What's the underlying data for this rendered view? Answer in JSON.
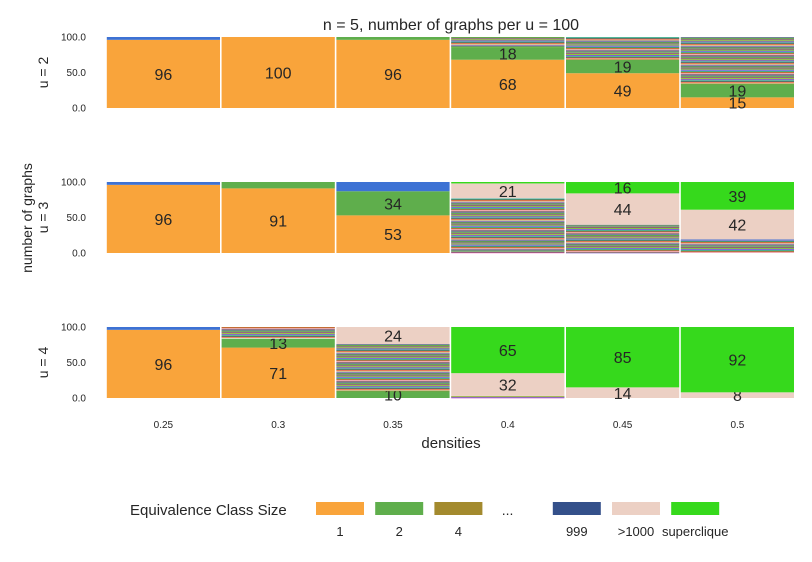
{
  "chart_data": {
    "type": "bar",
    "title": "n = 5, number of graphs per u = 100",
    "xlabel": "densities",
    "ylabel": "number of graphs",
    "categories": [
      "0.25",
      "0.3",
      "0.35",
      "0.4",
      "0.45",
      "0.5"
    ],
    "ylim": [
      0,
      100
    ],
    "yticks": [
      "100.0",
      "50.0",
      "0.0"
    ],
    "rows": [
      {
        "label": "u = 2",
        "stacks": [
          [
            {
              "v": 96,
              "c": "#f9a43b",
              "label": "96"
            },
            {
              "v": 4,
              "c": "#3d72d4"
            }
          ],
          [
            {
              "v": 100,
              "c": "#f9a43b",
              "label": "100"
            }
          ],
          [
            {
              "v": 96,
              "c": "#f9a43b",
              "label": "96"
            },
            {
              "v": 4,
              "c": "#5fae4c"
            }
          ],
          [
            {
              "v": 68,
              "c": "#f9a43b",
              "label": "68"
            },
            {
              "v": 18,
              "c": "#5fae4c",
              "label": "18"
            },
            {
              "v": 14,
              "c": "multi"
            }
          ],
          [
            {
              "v": 49,
              "c": "#f9a43b",
              "label": "49"
            },
            {
              "v": 19,
              "c": "#5fae4c",
              "label": "19"
            },
            {
              "v": 32,
              "c": "multi"
            }
          ],
          [
            {
              "v": 15,
              "c": "#f9a43b",
              "label": "15"
            },
            {
              "v": 19,
              "c": "#5fae4c",
              "label": "19"
            },
            {
              "v": 66,
              "c": "multi"
            }
          ]
        ]
      },
      {
        "label": "u = 3",
        "stacks": [
          [
            {
              "v": 96,
              "c": "#f9a43b",
              "label": "96"
            },
            {
              "v": 4,
              "c": "#3d72d4"
            }
          ],
          [
            {
              "v": 91,
              "c": "#f9a43b",
              "label": "91"
            },
            {
              "v": 9,
              "c": "#5fae4c"
            }
          ],
          [
            {
              "v": 53,
              "c": "#f9a43b",
              "label": "53"
            },
            {
              "v": 34,
              "c": "#5fae4c",
              "label": "34"
            },
            {
              "v": 13,
              "c": "#3d72d4"
            }
          ],
          [
            {
              "v": 77,
              "c": "multi"
            },
            {
              "v": 21,
              "c": "#ecd0c4",
              "label": "21"
            },
            {
              "v": 2,
              "c": "#36d91c"
            }
          ],
          [
            {
              "v": 40,
              "c": "multi"
            },
            {
              "v": 44,
              "c": "#ecd0c4",
              "label": "44"
            },
            {
              "v": 16,
              "c": "#36d91c",
              "label": "16"
            }
          ],
          [
            {
              "v": 19,
              "c": "multi"
            },
            {
              "v": 42,
              "c": "#ecd0c4",
              "label": "42"
            },
            {
              "v": 39,
              "c": "#36d91c",
              "label": "39"
            }
          ]
        ]
      },
      {
        "label": "u = 4",
        "stacks": [
          [
            {
              "v": 96,
              "c": "#f9a43b",
              "label": "96"
            },
            {
              "v": 4,
              "c": "#3d72d4"
            }
          ],
          [
            {
              "v": 71,
              "c": "#f9a43b",
              "label": "71"
            },
            {
              "v": 13,
              "c": "#5fae4c",
              "label": "13"
            },
            {
              "v": 16,
              "c": "multi"
            }
          ],
          [
            {
              "v": 10,
              "c": "#5fae4c",
              "label": "10"
            },
            {
              "v": 66,
              "c": "multi"
            },
            {
              "v": 24,
              "c": "#ecd0c4",
              "label": "24"
            }
          ],
          [
            {
              "v": 3,
              "c": "multi"
            },
            {
              "v": 32,
              "c": "#ecd0c4",
              "label": "32"
            },
            {
              "v": 65,
              "c": "#36d91c",
              "label": "65"
            }
          ],
          [
            {
              "v": 14,
              "c": "#ecd0c4",
              "label": "14"
            },
            {
              "v": 1,
              "c": "#ecd0c4"
            },
            {
              "v": 85,
              "c": "#36d91c",
              "label": "85"
            }
          ],
          [
            {
              "v": 8,
              "c": "#ecd0c4",
              "label": "8"
            },
            {
              "v": 92,
              "c": "#36d91c",
              "label": "92"
            }
          ]
        ]
      }
    ],
    "legend": {
      "title": "Equivalence Class Size",
      "items": [
        {
          "label": "1",
          "color": "#f9a43b"
        },
        {
          "label": "2",
          "color": "#5fae4c"
        },
        {
          "label": "4",
          "color": "#a38a2e"
        },
        {
          "label": "...",
          "color": ""
        },
        {
          "label": "999",
          "color": "#34508a"
        },
        {
          "label": ">1000",
          "color": "#ecd0c4"
        },
        {
          "label": "superclique",
          "color": "#36d91c"
        }
      ]
    }
  }
}
